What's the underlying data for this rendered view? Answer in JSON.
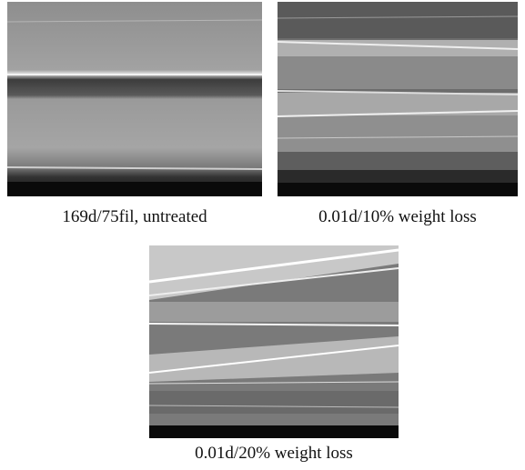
{
  "figures": [
    {
      "caption": "169d/75fil, untreated"
    },
    {
      "caption": "0.01d/10% weight loss"
    },
    {
      "caption": "0.01d/20% weight loss"
    }
  ]
}
